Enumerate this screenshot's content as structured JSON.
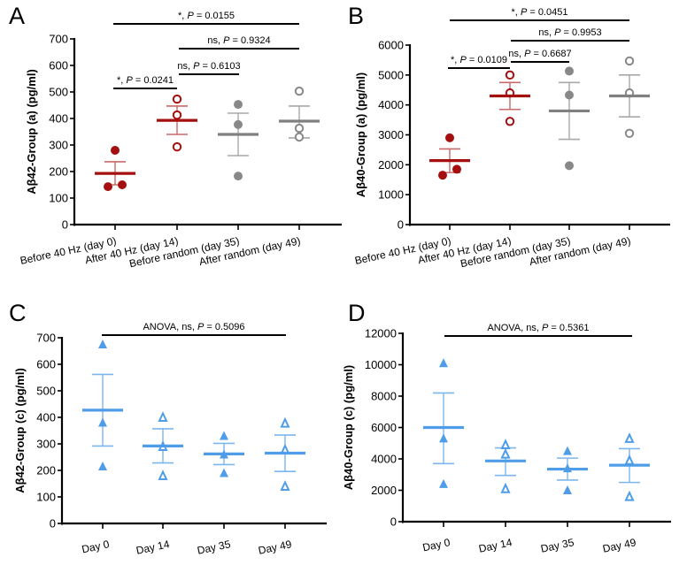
{
  "chart_data": [
    {
      "panel": "A",
      "type": "scatter",
      "subtype": "dot-plot with mean ± SEM",
      "ylabel": "Aβ42-Group (a) (pg/ml)",
      "xlabel": "",
      "ylim": [
        0,
        700
      ],
      "yticks": [
        0,
        100,
        200,
        300,
        400,
        500,
        600,
        700
      ],
      "categories": [
        "Before 40 Hz (day 0)",
        "After 40 Hz (day 14)",
        "Before random (day 35)",
        "After random (day 49)"
      ],
      "series": [
        {
          "name": "Before 40 Hz (day 0)",
          "marker": "filled-circle",
          "color": "#a50f0f",
          "values": [
            280,
            143,
            150
          ],
          "mean": 193,
          "sem_upper": 237,
          "sem_lower": 150
        },
        {
          "name": "After 40 Hz (day 14)",
          "marker": "open-circle",
          "color": "#a50f0f",
          "values": [
            473,
            413,
            293
          ],
          "mean": 393,
          "sem_upper": 447,
          "sem_lower": 340
        },
        {
          "name": "Before random (day 35)",
          "marker": "filled-circle",
          "color": "#888888",
          "values": [
            453,
            377,
            183
          ],
          "mean": 340,
          "sem_upper": 420,
          "sem_lower": 260
        },
        {
          "name": "After random (day 49)",
          "marker": "open-circle",
          "color": "#888888",
          "values": [
            503,
            363,
            330
          ],
          "mean": 390,
          "sem_upper": 447,
          "sem_lower": 327
        }
      ],
      "annotations": [
        {
          "from": 0,
          "to": 3,
          "text_prefix": "*, ",
          "p_label": "P",
          "text_suffix": " = 0.0155",
          "level": 3
        },
        {
          "from": 1,
          "to": 3,
          "text_prefix": "ns, ",
          "p_label": "P",
          "text_suffix": " = 0.9324",
          "level": 2
        },
        {
          "from": 1,
          "to": 2,
          "text_prefix": "ns, ",
          "p_label": "P",
          "text_suffix": " = 0.6103",
          "level": 1
        },
        {
          "from": 0,
          "to": 1,
          "text_prefix": "*, ",
          "p_label": "P",
          "text_suffix": " = 0.0241",
          "level": 0
        }
      ]
    },
    {
      "panel": "B",
      "type": "scatter",
      "subtype": "dot-plot with mean ± SEM",
      "ylabel": "Aβ40-Group (a) (pg/ml)",
      "xlabel": "",
      "ylim": [
        0,
        6000
      ],
      "yticks": [
        0,
        1000,
        2000,
        3000,
        4000,
        5000,
        6000
      ],
      "categories": [
        "Before 40 Hz (day 0)",
        "After 40 Hz (day 14)",
        "Before random (day 35)",
        "After random (day 49)"
      ],
      "series": [
        {
          "name": "Before 40 Hz (day 0)",
          "marker": "filled-circle",
          "color": "#a50f0f",
          "values": [
            2900,
            1650,
            1850
          ],
          "mean": 2140,
          "sem_upper": 2530,
          "sem_lower": 1740
        },
        {
          "name": "After 40 Hz (day 14)",
          "marker": "open-circle",
          "color": "#a50f0f",
          "values": [
            5000,
            4400,
            3450
          ],
          "mean": 4300,
          "sem_upper": 4750,
          "sem_lower": 3850
        },
        {
          "name": "Before random (day 35)",
          "marker": "filled-circle",
          "color": "#888888",
          "values": [
            5130,
            4330,
            1970
          ],
          "mean": 3800,
          "sem_upper": 4750,
          "sem_lower": 2850
        },
        {
          "name": "After random (day 49)",
          "marker": "open-circle",
          "color": "#888888",
          "values": [
            5470,
            4400,
            3050
          ],
          "mean": 4300,
          "sem_upper": 5000,
          "sem_lower": 3600
        }
      ],
      "annotations": [
        {
          "from": 0,
          "to": 3,
          "text_prefix": "*, ",
          "p_label": "P",
          "text_suffix": " = 0.0451",
          "level": 3
        },
        {
          "from": 1,
          "to": 3,
          "text_prefix": "ns, ",
          "p_label": "P",
          "text_suffix": " = 0.9953",
          "level": 2
        },
        {
          "from": 1,
          "to": 2,
          "text_prefix": "ns, ",
          "p_label": "P",
          "text_suffix": " = 0.6687",
          "level": 1
        },
        {
          "from": 0,
          "to": 1,
          "text_prefix": "*, ",
          "p_label": "P",
          "text_suffix": " = 0.0109",
          "level": 0
        }
      ]
    },
    {
      "panel": "C",
      "type": "scatter",
      "subtype": "dot-plot with mean ± SEM",
      "ylabel": "Aβ42-Group (c) (pg/ml)",
      "xlabel": "",
      "ylim": [
        0,
        700
      ],
      "yticks": [
        0,
        100,
        200,
        300,
        400,
        500,
        600,
        700
      ],
      "categories": [
        "Day 0",
        "Day 14",
        "Day 35",
        "Day 49"
      ],
      "series": [
        {
          "name": "Day 0",
          "marker": "filled-triangle",
          "color": "#4f9de8",
          "values": [
            675,
            380,
            215
          ],
          "mean": 427,
          "sem_upper": 562,
          "sem_lower": 292
        },
        {
          "name": "Day 14",
          "marker": "open-triangle",
          "color": "#4f9de8",
          "values": [
            400,
            290,
            180
          ],
          "mean": 292,
          "sem_upper": 357,
          "sem_lower": 228
        },
        {
          "name": "Day 35",
          "marker": "filled-triangle",
          "color": "#4f9de8",
          "values": [
            330,
            260,
            190
          ],
          "mean": 262,
          "sem_upper": 302,
          "sem_lower": 222
        },
        {
          "name": "Day 49",
          "marker": "open-triangle",
          "color": "#4f9de8",
          "values": [
            378,
            278,
            140
          ],
          "mean": 265,
          "sem_upper": 333,
          "sem_lower": 196
        }
      ],
      "annotations": [
        {
          "from": 0,
          "to": 3,
          "text_prefix": "ANOVA, ns, ",
          "p_label": "P",
          "text_suffix": " = 0.5096",
          "level": 0
        }
      ]
    },
    {
      "panel": "D",
      "type": "scatter",
      "subtype": "dot-plot with mean ± SEM",
      "ylabel": "Aβ40-Group (c) (pg/ml)",
      "xlabel": "",
      "ylim": [
        0,
        12000
      ],
      "yticks": [
        0,
        2000,
        4000,
        6000,
        8000,
        10000,
        12000
      ],
      "categories": [
        "Day 0",
        "Day 14",
        "Day 35",
        "Day 49"
      ],
      "series": [
        {
          "name": "Day 0",
          "marker": "filled-triangle",
          "color": "#4f9de8",
          "values": [
            10100,
            5300,
            2400
          ],
          "mean": 6000,
          "sem_upper": 8200,
          "sem_lower": 3700
        },
        {
          "name": "Day 14",
          "marker": "open-triangle",
          "color": "#4f9de8",
          "values": [
            4900,
            4300,
            2100
          ],
          "mean": 3870,
          "sem_upper": 4700,
          "sem_lower": 2950
        },
        {
          "name": "Day 35",
          "marker": "filled-triangle",
          "color": "#4f9de8",
          "values": [
            4500,
            3400,
            2000
          ],
          "mean": 3350,
          "sem_upper": 4050,
          "sem_lower": 2650
        },
        {
          "name": "Day 49",
          "marker": "open-triangle",
          "color": "#4f9de8",
          "values": [
            5300,
            3900,
            1600
          ],
          "mean": 3600,
          "sem_upper": 4650,
          "sem_lower": 2500
        }
      ],
      "annotations": [
        {
          "from": 0,
          "to": 3,
          "text_prefix": "ANOVA, ns, ",
          "p_label": "P",
          "text_suffix": " = 0.5361",
          "level": 0
        }
      ]
    }
  ]
}
